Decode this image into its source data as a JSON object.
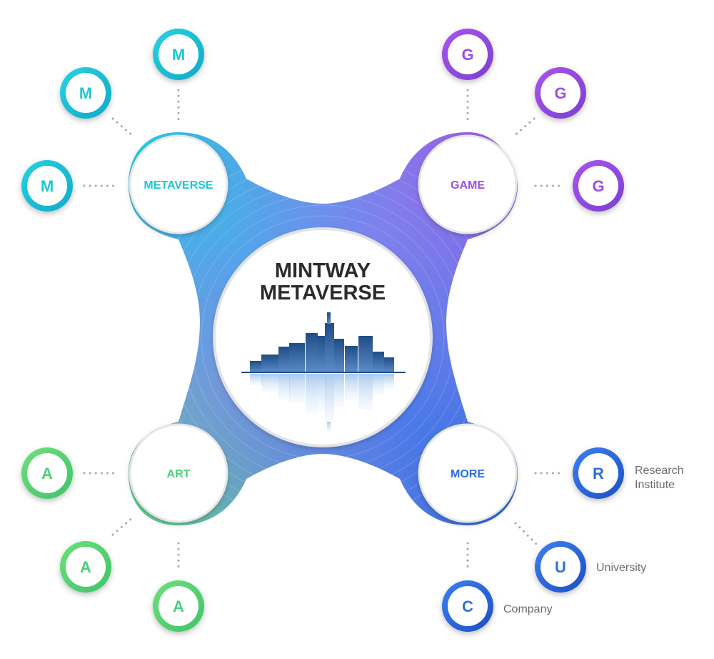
{
  "center": {
    "line1": "MINTWAY",
    "line2": "METAVERSE"
  },
  "hubs": {
    "metaverse": {
      "label": "METAVERSE",
      "color": "#1ec6d6"
    },
    "game": {
      "label": "GAME",
      "color": "#9b4ee6"
    },
    "art": {
      "label": "ART",
      "color": "#4cd07a"
    },
    "more": {
      "label": "MORE",
      "color": "#2f6ee0"
    }
  },
  "satellites": {
    "metaverse": [
      "M",
      "M",
      "M"
    ],
    "game": [
      "G",
      "G",
      "G"
    ],
    "art": [
      "A",
      "A",
      "A"
    ],
    "more": [
      {
        "letter": "R",
        "caption_line1": "Research",
        "caption_line2": "Institute"
      },
      {
        "letter": "U",
        "caption": "University"
      },
      {
        "letter": "C",
        "caption": "Company"
      }
    ]
  },
  "colors": {
    "metaverse": "#1ec6d6",
    "game": "#9b4ee6",
    "art": "#4cd07a",
    "more": "#2f6ee0",
    "text_dark": "#2b2b2b",
    "caption": "#6b6b6b"
  },
  "icons": {
    "center_illustration": "city-skyline-reflection-icon"
  }
}
